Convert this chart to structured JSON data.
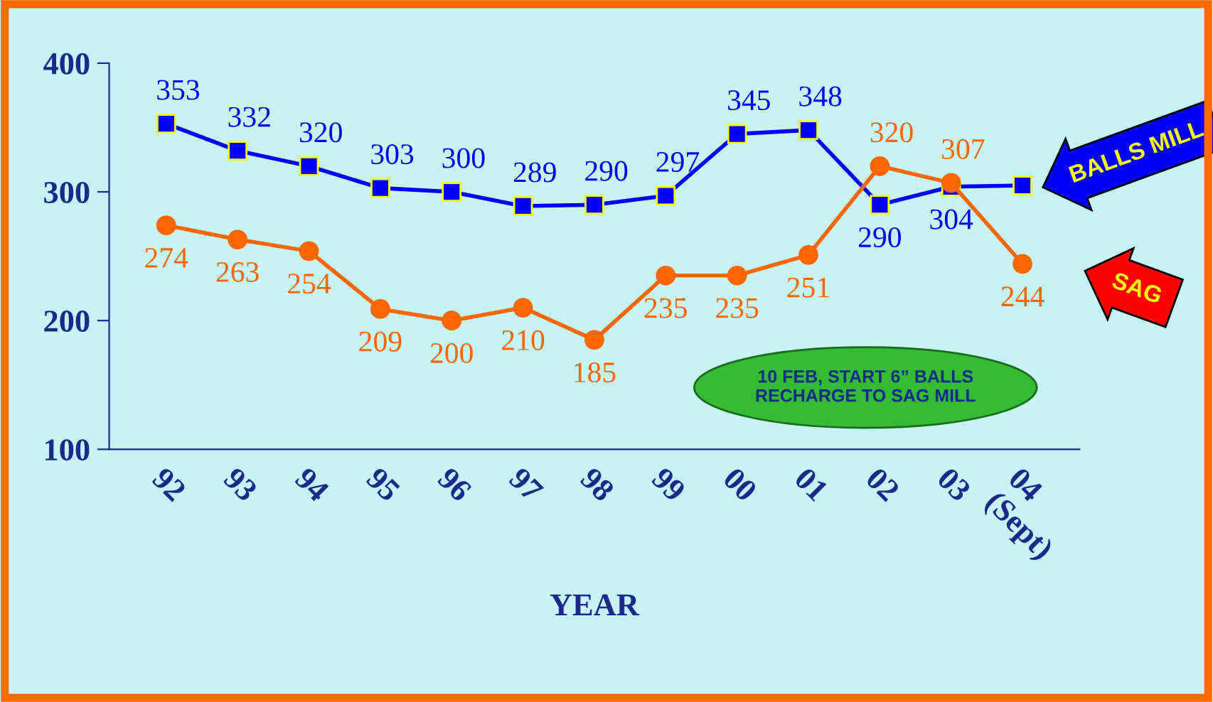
{
  "chart_data": {
    "type": "line",
    "categories": [
      "92",
      "93",
      "94",
      "95",
      "96",
      "97",
      "98",
      "99",
      "00",
      "01",
      "02",
      "03",
      "04\n(Sept)"
    ],
    "xlabel": "YEAR",
    "ylim": [
      100,
      400
    ],
    "yticks": [
      100,
      200,
      300,
      400
    ],
    "grid": false,
    "legend": false,
    "series": [
      {
        "name": "BALLS MILL",
        "color": "#0000ff",
        "marker": "square",
        "values": [
          353,
          332,
          320,
          303,
          300,
          289,
          290,
          297,
          345,
          348,
          290,
          304,
          305
        ],
        "value_labels": [
          "353",
          "332",
          "320",
          "303",
          "300",
          "289",
          "290",
          "297",
          "345",
          "348",
          "290",
          "304",
          null
        ]
      },
      {
        "name": "SAG",
        "color": "#ff6600",
        "marker": "circle",
        "values": [
          274,
          263,
          254,
          209,
          200,
          210,
          185,
          235,
          235,
          251,
          320,
          307,
          244
        ],
        "data_labels": true
      }
    ],
    "annotations": [
      "10 FEB, START 6” BALLS\nRECHARGE TO SAG MILL"
    ]
  }
}
